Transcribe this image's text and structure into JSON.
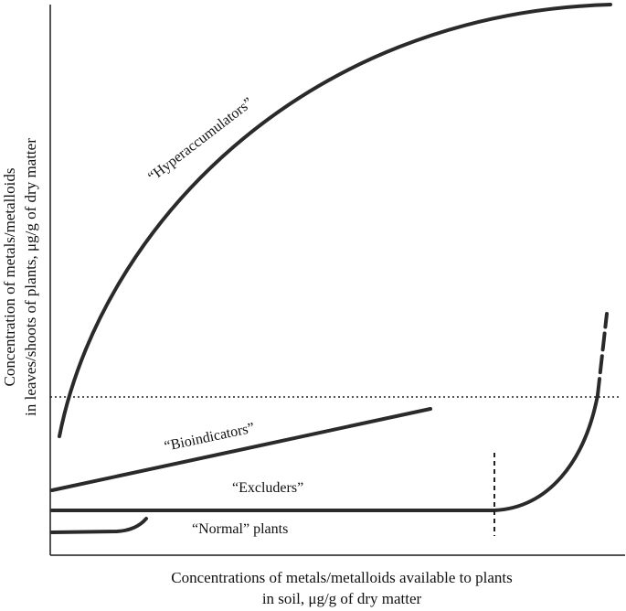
{
  "labels": {
    "hyperaccumulators": "“Hyperaccumulators”",
    "bioindicators": "“Bioindicators”",
    "excluders": "“Excluders”",
    "normal_plants": "“Normal” plants"
  },
  "axes": {
    "y_line1": "Concentration of metals/metalloids",
    "y_line2": "in leaves/shoots of plants, μg/g of dry matter",
    "x_line1": "Concentrations of metals/metalloids available to plants",
    "x_line2": "in soil, μg/g of dry matter"
  }
}
